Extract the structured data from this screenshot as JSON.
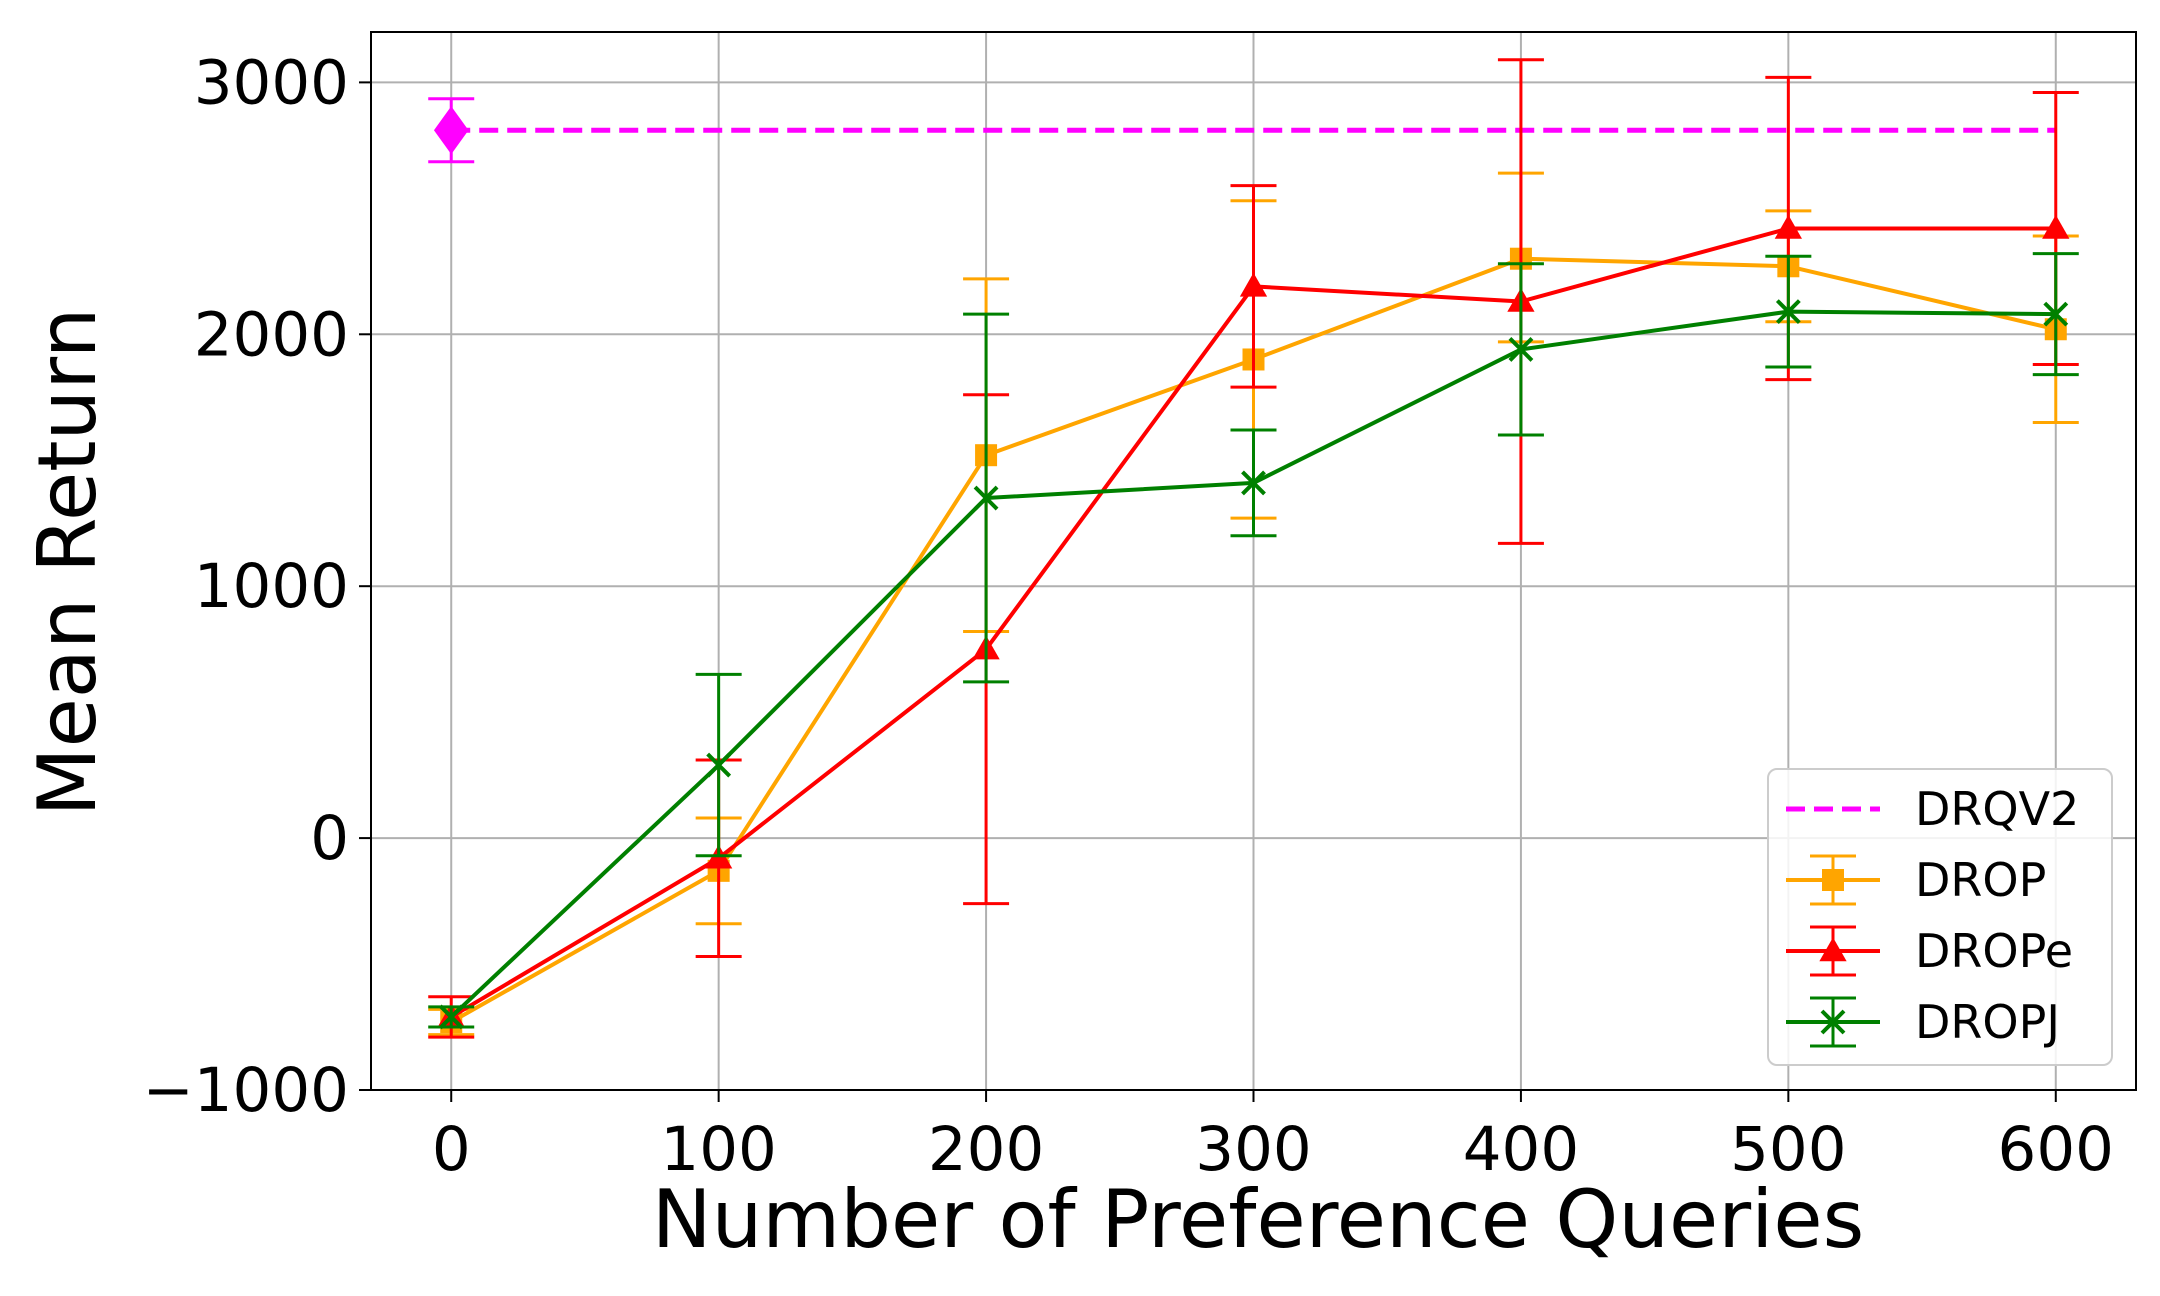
{
  "chart_data": {
    "type": "line",
    "title": "",
    "xlabel": "Number of Preference Queries",
    "ylabel": "Mean Return",
    "xlim": [
      -30,
      630
    ],
    "ylim": [
      -1000,
      3200
    ],
    "xticks": [
      0,
      100,
      200,
      300,
      400,
      500,
      600
    ],
    "yticks": [
      -1000,
      0,
      1000,
      2000,
      3000
    ],
    "xtick_labels": [
      "0",
      "100",
      "200",
      "300",
      "400",
      "500",
      "600"
    ],
    "ytick_labels": [
      "−1000",
      "0",
      "1000",
      "2000",
      "3000"
    ],
    "grid": true,
    "legend_position": "lower-right",
    "reference": {
      "name": "DRQV2",
      "color": "#ff00ff",
      "x": 0,
      "value": 2810,
      "err": 125,
      "x_end": 600
    },
    "series": [
      {
        "name": "DROP",
        "color": "#ffa500",
        "marker": "square",
        "x": [
          0,
          100,
          200,
          300,
          400,
          500,
          600
        ],
        "y": [
          -730,
          -130,
          1520,
          1900,
          2300,
          2270,
          2020
        ],
        "yerr_low": [
          50,
          210,
          700,
          630,
          330,
          220,
          370
        ],
        "yerr_high": [
          50,
          210,
          700,
          630,
          340,
          220,
          370
        ]
      },
      {
        "name": "DROPe",
        "color": "#ff0000",
        "marker": "triangle",
        "x": [
          0,
          100,
          200,
          300,
          400,
          500,
          600
        ],
        "y": [
          -710,
          -80,
          750,
          2190,
          2130,
          2420,
          2420
        ],
        "yerr_low": [
          80,
          390,
          1010,
          400,
          960,
          600,
          540
        ],
        "yerr_high": [
          80,
          390,
          1010,
          400,
          960,
          600,
          540
        ]
      },
      {
        "name": "DROPJ",
        "color": "#008000",
        "marker": "x",
        "x": [
          0,
          100,
          200,
          300,
          400,
          500,
          600
        ],
        "y": [
          -710,
          290,
          1350,
          1410,
          1940,
          2090,
          2080
        ],
        "yerr_low": [
          40,
          360,
          730,
          210,
          340,
          220,
          240
        ],
        "yerr_high": [
          40,
          360,
          730,
          210,
          340,
          220,
          240
        ]
      }
    ]
  }
}
